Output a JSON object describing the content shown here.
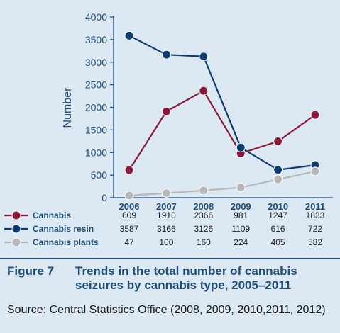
{
  "chart_data": {
    "type": "line",
    "x": [
      "2006",
      "2007",
      "2008",
      "2009",
      "2010",
      "2011"
    ],
    "series": [
      {
        "name": "Cannabis",
        "values": [
          609,
          1910,
          2366,
          981,
          1247,
          1833
        ],
        "color": "#8b1a3a"
      },
      {
        "name": "Cannabis resin",
        "values": [
          3587,
          3166,
          3126,
          1109,
          616,
          722
        ],
        "color": "#0d3d73"
      },
      {
        "name": "Cannabis plants",
        "values": [
          47,
          100,
          160,
          224,
          405,
          582
        ],
        "color": "#b8b8b8"
      }
    ],
    "ylabel": "Number",
    "xlabel": "",
    "ylim": [
      0,
      4000
    ],
    "yticks": [
      "0",
      "500",
      "1000",
      "1500",
      "2000",
      "2500",
      "3000",
      "3500",
      "4000"
    ],
    "grid": false,
    "legend": "table below chart"
  },
  "caption": {
    "figure_label": "Figure 7",
    "title": "Trends in the total number of cannabis seizures by cannabis type, 2005–2011",
    "source": "Source: Central Statistics Office (2008, 2009, 2010,2011, 2012)"
  },
  "colors": {
    "background": "#dce8f2",
    "axis": "#1f4e79"
  }
}
